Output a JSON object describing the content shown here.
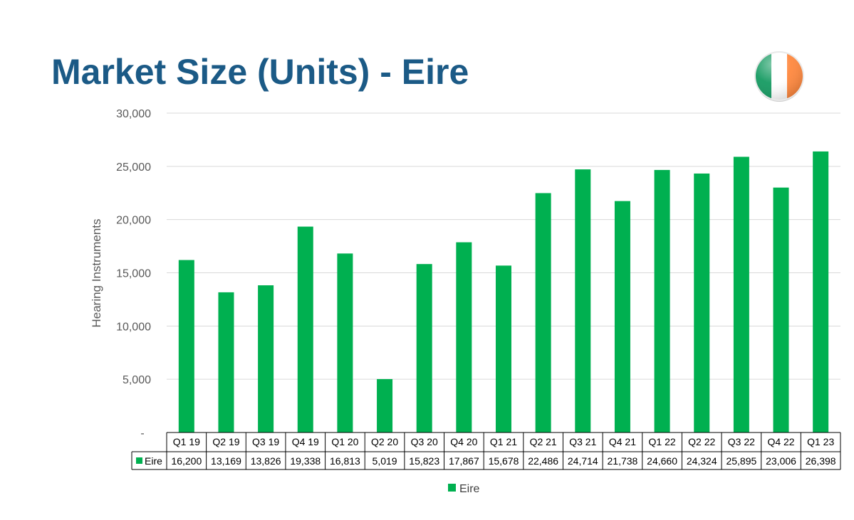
{
  "page": {
    "title": "Market Size (Units) - Eire"
  },
  "flag": {
    "icon": "ireland-flag-icon",
    "colors": [
      "#169b62",
      "#ffffff",
      "#ff883e"
    ]
  },
  "chart_data": {
    "type": "bar",
    "title": "",
    "xlabel": "",
    "ylabel": "Hearing Instruments",
    "ylim": [
      0,
      30000
    ],
    "yticks": [
      0,
      5000,
      10000,
      15000,
      20000,
      25000,
      30000
    ],
    "ytick_labels": [
      "-",
      "5,000",
      "10,000",
      "15,000",
      "20,000",
      "25,000",
      "30,000"
    ],
    "grid": true,
    "legend_position": "bottom",
    "data_table": true,
    "categories": [
      "Q1 19",
      "Q2 19",
      "Q3 19",
      "Q4 19",
      "Q1 20",
      "Q2 20",
      "Q3 20",
      "Q4 20",
      "Q1 21",
      "Q2 21",
      "Q3 21",
      "Q4 21",
      "Q1 22",
      "Q2 22",
      "Q3 22",
      "Q4 22",
      "Q1 23"
    ],
    "series": [
      {
        "name": "Eire",
        "color": "#00b050",
        "values": [
          16200,
          13169,
          13826,
          19338,
          16813,
          5019,
          15823,
          17867,
          15678,
          22486,
          24714,
          21738,
          24660,
          24324,
          25895,
          23006,
          26398
        ],
        "labels": [
          "16,200",
          "13,169",
          "13,826",
          "19,338",
          "16,813",
          "5,019",
          "15,823",
          "17,867",
          "15,678",
          "22,486",
          "24,714",
          "21,738",
          "24,660",
          "24,324",
          "25,895",
          "23,006",
          "26,398"
        ]
      }
    ]
  }
}
